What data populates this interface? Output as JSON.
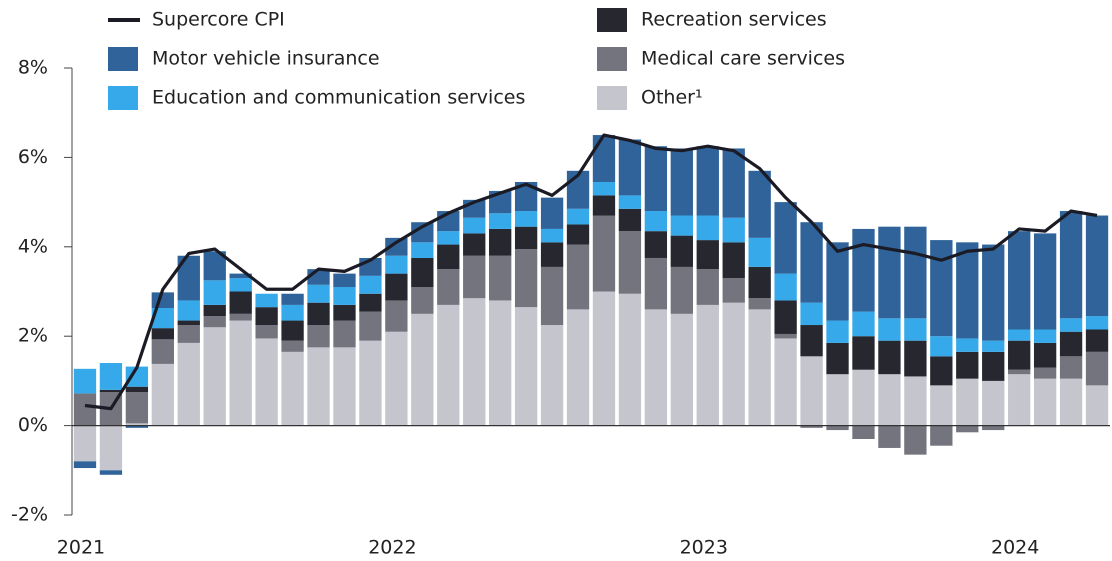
{
  "chart_data": {
    "type": "bar",
    "categories": [
      "2021",
      null,
      null,
      null,
      null,
      null,
      null,
      null,
      null,
      null,
      null,
      null,
      "2022",
      null,
      null,
      null,
      null,
      null,
      null,
      null,
      null,
      null,
      null,
      null,
      "2023",
      null,
      null,
      null,
      null,
      null,
      null,
      null,
      null,
      null,
      null,
      null,
      "2024",
      null,
      null,
      null
    ],
    "stacked": true,
    "series": [
      {
        "name": "Other¹",
        "color": "#c5c5cd",
        "values": [
          -0.8,
          -1.0,
          0.05,
          1.38,
          1.85,
          2.2,
          2.35,
          1.95,
          1.65,
          1.75,
          1.75,
          1.9,
          2.1,
          2.5,
          2.7,
          2.85,
          2.8,
          2.65,
          2.25,
          2.6,
          3.0,
          2.95,
          2.6,
          2.5,
          2.7,
          2.75,
          2.6,
          1.95,
          1.55,
          1.15,
          1.25,
          1.15,
          1.1,
          0.9,
          1.05,
          1.0,
          1.15,
          1.05,
          1.05,
          0.9
        ]
      },
      {
        "name": "Medical care services",
        "color": "#74747f",
        "values": [
          0.72,
          0.75,
          0.7,
          0.55,
          0.4,
          0.25,
          0.15,
          0.3,
          0.25,
          0.5,
          0.6,
          0.65,
          0.7,
          0.6,
          0.8,
          0.95,
          1.0,
          1.3,
          1.3,
          1.45,
          1.7,
          1.4,
          1.15,
          1.05,
          0.8,
          0.55,
          0.25,
          0.1,
          -0.05,
          -0.1,
          -0.3,
          -0.5,
          -0.65,
          -0.45,
          -0.15,
          -0.1,
          0.1,
          0.25,
          0.5,
          0.75
        ]
      },
      {
        "name": "Recreation services",
        "color": "#27272f",
        "values": [
          0.0,
          0.05,
          0.12,
          0.25,
          0.1,
          0.25,
          0.5,
          0.4,
          0.45,
          0.5,
          0.35,
          0.4,
          0.6,
          0.65,
          0.55,
          0.5,
          0.6,
          0.5,
          0.55,
          0.45,
          0.45,
          0.5,
          0.6,
          0.7,
          0.65,
          0.8,
          0.7,
          0.75,
          0.7,
          0.7,
          0.75,
          0.75,
          0.8,
          0.65,
          0.6,
          0.65,
          0.65,
          0.55,
          0.55,
          0.5
        ]
      },
      {
        "name": "Education and communication services",
        "color": "#35a9e9",
        "values": [
          0.55,
          0.6,
          0.45,
          0.45,
          0.45,
          0.55,
          0.3,
          0.3,
          0.35,
          0.4,
          0.4,
          0.4,
          0.4,
          0.35,
          0.3,
          0.35,
          0.35,
          0.35,
          0.3,
          0.35,
          0.3,
          0.3,
          0.45,
          0.45,
          0.55,
          0.55,
          0.65,
          0.6,
          0.5,
          0.5,
          0.55,
          0.5,
          0.5,
          0.45,
          0.3,
          0.25,
          0.25,
          0.3,
          0.3,
          0.3
        ]
      },
      {
        "name": "Motor vehicle insurance",
        "color": "#2f6399",
        "values": [
          -0.15,
          -0.1,
          -0.05,
          0.35,
          1.0,
          0.65,
          0.1,
          0.0,
          0.25,
          0.35,
          0.3,
          0.4,
          0.4,
          0.45,
          0.45,
          0.4,
          0.5,
          0.65,
          0.7,
          0.85,
          1.05,
          1.25,
          1.45,
          1.5,
          1.55,
          1.55,
          1.5,
          1.6,
          1.8,
          1.75,
          1.85,
          2.05,
          2.05,
          2.15,
          2.15,
          2.15,
          2.2,
          2.15,
          2.4,
          2.25
        ]
      },
      {
        "name": "Supercore CPI",
        "type": "line",
        "color": "#1b1b25",
        "values": [
          0.45,
          0.38,
          1.3,
          3.05,
          3.85,
          3.95,
          3.5,
          3.05,
          3.05,
          3.5,
          3.45,
          3.7,
          4.1,
          4.45,
          4.75,
          5.0,
          5.2,
          5.4,
          5.15,
          5.6,
          6.5,
          6.38,
          6.2,
          6.15,
          6.25,
          6.15,
          5.75,
          5.1,
          4.55,
          3.9,
          4.05,
          3.95,
          3.85,
          3.7,
          3.9,
          3.95,
          4.4,
          4.35,
          4.8,
          4.7
        ]
      }
    ],
    "ylim": [
      -2,
      8
    ],
    "yticks": [
      {
        "value": -2,
        "label": "-2%"
      },
      {
        "value": 0,
        "label": "0%"
      },
      {
        "value": 2,
        "label": "2%"
      },
      {
        "value": 4,
        "label": "4%"
      },
      {
        "value": 6,
        "label": "6%"
      },
      {
        "value": 8,
        "label": "8%"
      }
    ]
  }
}
